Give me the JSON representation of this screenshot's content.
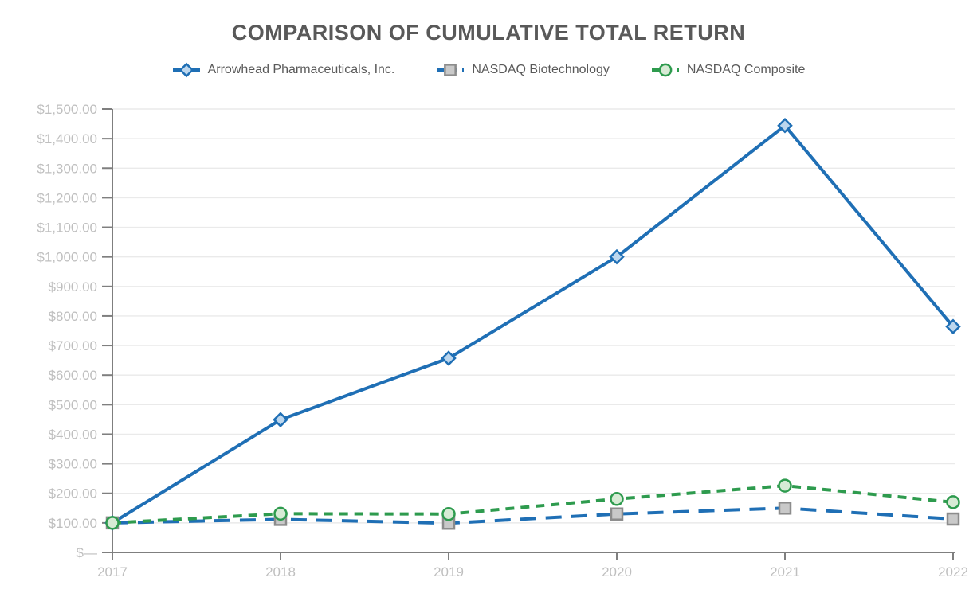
{
  "title": "COMPARISON OF CUMULATIVE TOTAL RETURN",
  "chart_data": {
    "type": "line",
    "title": "COMPARISON OF CUMULATIVE TOTAL RETURN",
    "x_labels": [
      "2017",
      "2018",
      "2019",
      "2020",
      "2021",
      "2022"
    ],
    "y_ticks": [
      "$—",
      "$100.00",
      "$200.00",
      "$300.00",
      "$400.00",
      "$500.00",
      "$600.00",
      "$700.00",
      "$800.00",
      "$900.00",
      "$1,000.00",
      "$1,100.00",
      "$1,200.00",
      "$1,300.00",
      "$1,400.00",
      "$1,500.00"
    ],
    "ylim": [
      0,
      1500
    ],
    "y_step": 100,
    "grid": "horizontal",
    "legend_position": "top",
    "colors": {
      "title_text": "#595959",
      "legend_text": "#595959",
      "axis_line": "#7F7F7F",
      "tick_label": "#BFBFBF",
      "gridline": "#EAEAEA"
    },
    "series": [
      {
        "name": "Arrowhead Pharmaceuticals, Inc.",
        "values": [
          100,
          449,
          657,
          1000,
          1444,
          764
        ],
        "line_color": "#1F6FB5",
        "line_style": "solid",
        "marker": "diamond",
        "marker_fill": "#BDD7EE",
        "marker_border": "#1F6FB5"
      },
      {
        "name": "NASDAQ Biotechnology",
        "values": [
          100,
          112,
          99,
          130,
          150,
          113
        ],
        "line_color": "#1F6FB5",
        "line_style": "long-dash",
        "marker": "square",
        "marker_fill": "#C9C9C9",
        "marker_border": "#8C8C8C"
      },
      {
        "name": "NASDAQ Composite",
        "values": [
          100,
          131,
          130,
          181,
          226,
          170
        ],
        "line_color": "#2E9B4E",
        "line_style": "dash",
        "marker": "circle",
        "marker_fill": "#D7EBD5",
        "marker_border": "#2E9B4E"
      }
    ]
  }
}
